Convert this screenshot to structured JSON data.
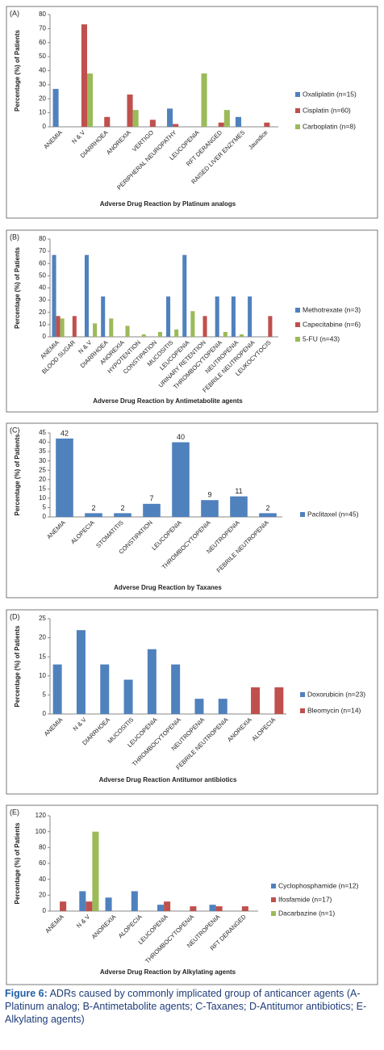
{
  "chart_data": [
    {
      "type": "bar",
      "panel": "(A)",
      "ylabel": "Percentage (%) of Patients",
      "xlabel": "Adverse Drug Reaction by  Platinum analogs",
      "categories": [
        "ANEMIA",
        "N & V",
        "DIARRHOEA",
        "ANOREXIA",
        "VERTIGO",
        "PERIPHERAL NEUROPATHY",
        "LEUCOPENIA",
        "RFT DERANGED",
        "RAISED LIVER ENZYMES",
        "Jaundice"
      ],
      "series": [
        {
          "name": "Oxaliplatin (n=15)",
          "color": "#4f81bd",
          "values": [
            27,
            0,
            0,
            0,
            0,
            13,
            0,
            0,
            7,
            0
          ]
        },
        {
          "name": "Cisplatin (n=60)",
          "color": "#c0504d",
          "values": [
            0,
            73,
            7,
            23,
            5,
            2,
            0,
            3,
            0,
            3
          ]
        },
        {
          "name": "Carboplatin (n=8)",
          "color": "#9bbb59",
          "values": [
            0,
            38,
            0,
            12,
            0,
            0,
            38,
            12,
            0,
            0
          ]
        }
      ],
      "ylim": [
        0,
        80
      ],
      "yticks": [
        0,
        10,
        20,
        30,
        40,
        50,
        60,
        70,
        80
      ],
      "legend": "right"
    },
    {
      "type": "bar",
      "panel": "(B)",
      "ylabel": "Percentage (%) of Patients",
      "xlabel": "Adverse Drug Reaction by Antimetabolite agents",
      "categories": [
        "ANEMIA",
        "BLOOD SUGAR",
        "N & V",
        "DIARRHOEA",
        "ANOREXIA",
        "HYPOTENTION",
        "CONSTIPATION",
        "MUCOSITIS",
        "LEUCOPENIA",
        "URINARY RETENTION",
        "THROMBOCYTOPENIA",
        "NEUTROPENIA",
        "FEBRILE NEUTROPENIA",
        "LEUKOCYTOCIS"
      ],
      "series": [
        {
          "name": "Methotrexate (n=3)",
          "color": "#4f81bd",
          "values": [
            67,
            0,
            67,
            33,
            0,
            0,
            0,
            33,
            67,
            0,
            33,
            33,
            33,
            0
          ]
        },
        {
          "name": "Capecitabine (n=6)",
          "color": "#c0504d",
          "values": [
            17,
            17,
            0,
            0,
            0,
            0,
            0,
            0,
            0,
            17,
            0,
            0,
            0,
            17
          ]
        },
        {
          "name": "5-FU (n=43)",
          "color": "#9bbb59",
          "values": [
            15,
            0,
            11,
            15,
            9,
            2,
            4,
            6,
            21,
            0,
            4,
            2,
            0,
            0
          ]
        }
      ],
      "ylim": [
        0,
        80
      ],
      "yticks": [
        0,
        10,
        20,
        30,
        40,
        50,
        60,
        70,
        80
      ],
      "legend": "right"
    },
    {
      "type": "bar",
      "panel": "(C)",
      "ylabel": "Percentage (%) of Patients",
      "xlabel": "Adverse Drug Reaction by Taxanes",
      "categories": [
        "ANEMIA",
        "ALOPECIA",
        "STOMATITIS",
        "CONSTIPATION",
        "LEUCOPENIA",
        "THROMBOCYTOPENIA",
        "NEUTROPENIA",
        "FEBRILE NEUTROPENIA"
      ],
      "series": [
        {
          "name": "Paclitaxel (n=45)",
          "color": "#4f81bd",
          "values": [
            42,
            2,
            2,
            7,
            40,
            9,
            11,
            2
          ]
        }
      ],
      "ylim": [
        0,
        45
      ],
      "yticks": [
        0,
        5,
        10,
        15,
        20,
        25,
        30,
        35,
        40,
        45
      ],
      "legend": "right",
      "data_labels": true
    },
    {
      "type": "bar",
      "panel": "(D)",
      "ylabel": "Percentage (%) of Patients",
      "xlabel": "Adverse Drug Reaction Antitumor antibiotics",
      "categories": [
        "ANEMIA",
        "N & V",
        "DIARRHOEA",
        "MUCOSITIS",
        "LEUCOPENIA",
        "THROMBOCYTOPENIA",
        "NEUTROPENIA",
        "FEBRILE NEUTROPENIA",
        "ANOREXIA",
        "ALOPECIA"
      ],
      "series": [
        {
          "name": "Doxorubicin (n=23)",
          "color": "#4f81bd",
          "values": [
            13,
            22,
            13,
            9,
            17,
            13,
            4,
            4,
            0,
            0
          ]
        },
        {
          "name": "Bleomycin (n=14)",
          "color": "#c0504d",
          "values": [
            0,
            0,
            0,
            0,
            0,
            0,
            0,
            0,
            7,
            7
          ]
        }
      ],
      "ylim": [
        0,
        25
      ],
      "yticks": [
        0,
        5,
        10,
        15,
        20,
        25
      ],
      "legend": "right"
    },
    {
      "type": "bar",
      "panel": "(E)",
      "ylabel": "Percentage (%) of Patients",
      "xlabel": "Adverse Drug Reaction by Alkylating agents",
      "categories": [
        "ANEMIA",
        "N & V",
        "ANOREXIA",
        "ALOPECIA",
        "LEUCOPENIA",
        "THROMBOCYTOPENIA",
        "NEUTROPENIA",
        "RFT DERANGED"
      ],
      "series": [
        {
          "name": "Cyclophosphamide (n=12)",
          "color": "#4f81bd",
          "values": [
            0,
            25,
            17,
            25,
            8,
            0,
            8,
            0
          ]
        },
        {
          "name": "Ifosfamide (n=17)",
          "color": "#c0504d",
          "values": [
            12,
            12,
            0,
            0,
            12,
            6,
            6,
            6
          ]
        },
        {
          "name": "Dacarbazine (n=1)",
          "color": "#9bbb59",
          "values": [
            0,
            100,
            0,
            0,
            0,
            0,
            0,
            0
          ]
        }
      ],
      "ylim": [
        0,
        120
      ],
      "yticks": [
        0,
        20,
        40,
        60,
        80,
        100,
        120
      ],
      "legend": "right"
    }
  ],
  "caption": {
    "label": "Figure 6:",
    "text": "ADRs caused by commonly implicated group of anticancer agents (A-Platinum analog; B-Antimetabolite agents; C-Taxanes; D-Antitumor antibiotics; E-Alkylating agents)"
  }
}
